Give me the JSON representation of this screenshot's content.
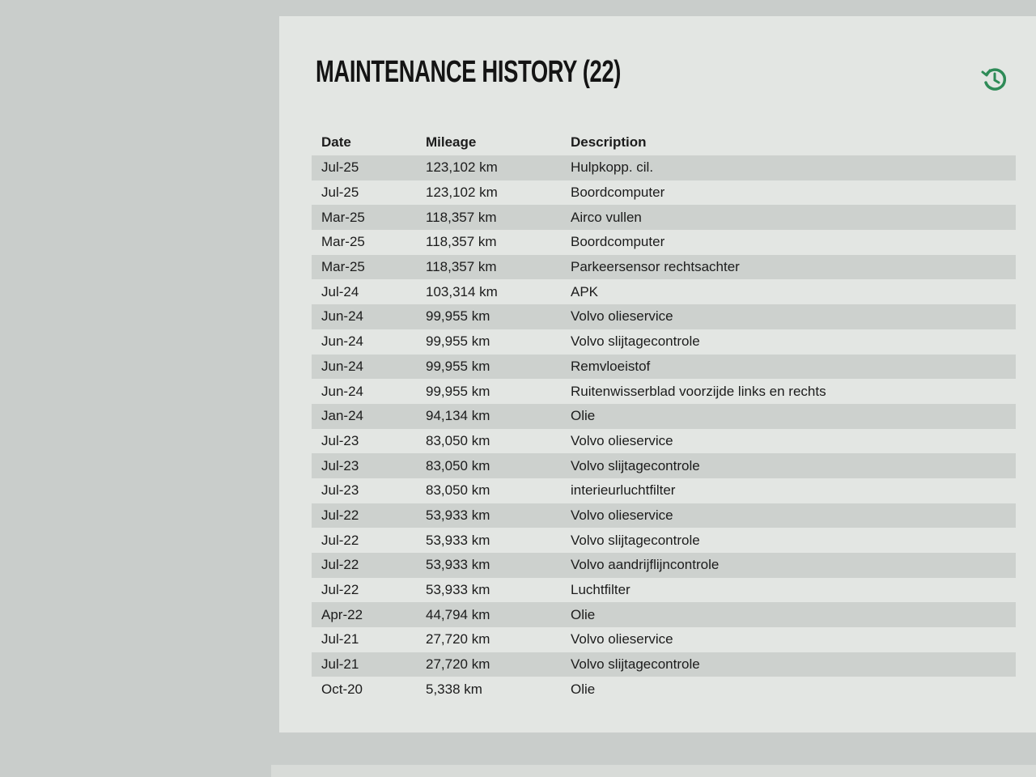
{
  "header": {
    "title": "MAINTENANCE HISTORY (22)",
    "history_icon": "history-icon",
    "accent": "#2e8b57"
  },
  "table": {
    "columns": [
      "Date",
      "Mileage",
      "Description"
    ],
    "rows": [
      [
        "Jul-25",
        "123,102 km",
        "Hulpkopp. cil."
      ],
      [
        "Jul-25",
        "123,102 km",
        "Boordcomputer"
      ],
      [
        "Mar-25",
        "118,357 km",
        "Airco vullen"
      ],
      [
        "Mar-25",
        "118,357 km",
        "Boordcomputer"
      ],
      [
        "Mar-25",
        "118,357 km",
        "Parkeersensor rechtsachter"
      ],
      [
        "Jul-24",
        "103,314 km",
        "APK"
      ],
      [
        "Jun-24",
        "99,955 km",
        "Volvo olieservice"
      ],
      [
        "Jun-24",
        "99,955 km",
        "Volvo slijtagecontrole"
      ],
      [
        "Jun-24",
        "99,955 km",
        "Remvloeistof"
      ],
      [
        "Jun-24",
        "99,955 km",
        "Ruitenwisserblad voorzijde links en rechts"
      ],
      [
        "Jan-24",
        "94,134 km",
        "Olie"
      ],
      [
        "Jul-23",
        "83,050 km",
        "Volvo olieservice"
      ],
      [
        "Jul-23",
        "83,050 km",
        "Volvo slijtagecontrole"
      ],
      [
        "Jul-23",
        "83,050 km",
        "interieurluchtfilter"
      ],
      [
        "Jul-22",
        "53,933 km",
        "Volvo olieservice"
      ],
      [
        "Jul-22",
        "53,933 km",
        "Volvo slijtagecontrole"
      ],
      [
        "Jul-22",
        "53,933 km",
        "Volvo aandrijflijncontrole"
      ],
      [
        "Jul-22",
        "53,933 km",
        "Luchtfilter"
      ],
      [
        "Apr-22",
        "44,794 km",
        "Olie"
      ],
      [
        "Jul-21",
        "27,720 km",
        "Volvo olieservice"
      ],
      [
        "Jul-21",
        "27,720 km",
        "Volvo slijtagecontrole"
      ],
      [
        "Oct-20",
        "5,338 km",
        "Olie"
      ]
    ]
  }
}
